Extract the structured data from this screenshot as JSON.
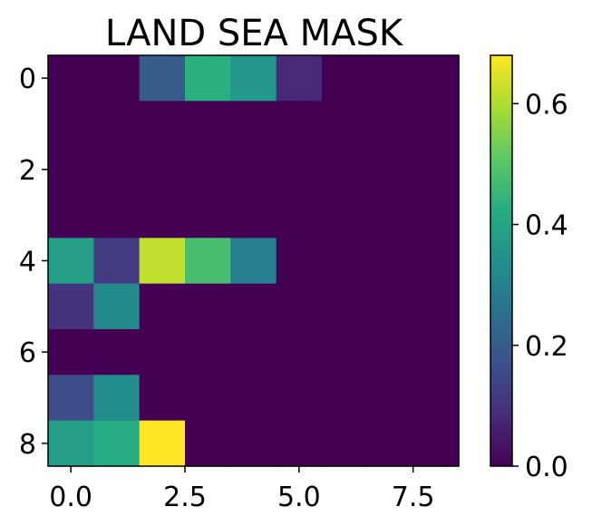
{
  "chart_data": {
    "type": "heatmap",
    "title": "LAND SEA MASK",
    "xlabel": "",
    "ylabel": "",
    "x_ticks": [
      "0.0",
      "2.5",
      "5.0",
      "7.5"
    ],
    "y_ticks": [
      "0",
      "2",
      "4",
      "6",
      "8"
    ],
    "colorbar_ticks": [
      "0.0",
      "0.2",
      "0.4",
      "0.6"
    ],
    "colormap": "viridis",
    "vmin": 0.0,
    "vmax": 0.68,
    "grid": false,
    "rows": 9,
    "cols": 9,
    "values": [
      [
        0.0,
        0.0,
        0.2,
        0.43,
        0.36,
        0.08,
        0.0,
        0.0,
        0.0
      ],
      [
        0.0,
        0.0,
        0.0,
        0.0,
        0.0,
        0.0,
        0.0,
        0.0,
        0.0
      ],
      [
        0.0,
        0.0,
        0.0,
        0.0,
        0.0,
        0.0,
        0.0,
        0.0,
        0.0
      ],
      [
        0.0,
        0.0,
        0.0,
        0.0,
        0.0,
        0.0,
        0.0,
        0.0,
        0.0
      ],
      [
        0.38,
        0.12,
        0.62,
        0.48,
        0.29,
        0.0,
        0.0,
        0.0,
        0.0
      ],
      [
        0.1,
        0.32,
        0.0,
        0.0,
        0.0,
        0.0,
        0.0,
        0.0,
        0.0
      ],
      [
        0.0,
        0.0,
        0.0,
        0.0,
        0.0,
        0.0,
        0.0,
        0.0,
        0.0
      ],
      [
        0.16,
        0.33,
        0.0,
        0.0,
        0.0,
        0.0,
        0.0,
        0.0,
        0.0
      ],
      [
        0.38,
        0.42,
        0.68,
        0.0,
        0.0,
        0.0,
        0.0,
        0.0,
        0.0
      ]
    ]
  }
}
